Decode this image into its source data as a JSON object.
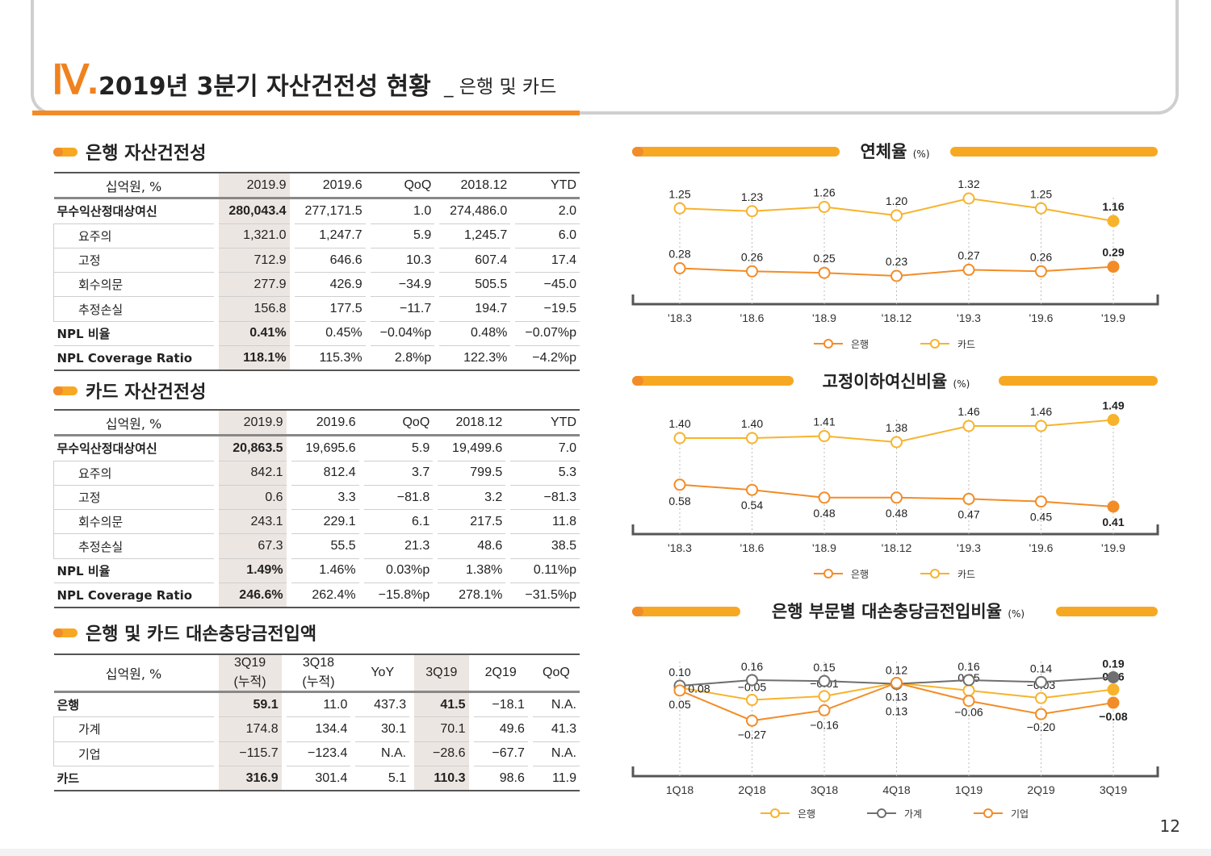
{
  "header": {
    "roman": "Ⅳ.",
    "title": "2019년 3분기 자산건전성 현황",
    "subtitle": "_ 은행 및 카드"
  },
  "colors": {
    "orange": "#f28c28",
    "yellow": "#f7b32b",
    "gray": "#6f6f6f",
    "highlight": "#ece6e2"
  },
  "bank_table": {
    "title": "은행 자산건전성",
    "columns": [
      "십억원, %",
      "2019.9",
      "2019.6",
      "QoQ",
      "2018.12",
      "YTD"
    ],
    "rows": [
      {
        "label": "무수익산정대상여신",
        "values": [
          "280,043.4",
          "277,171.5",
          "1.0",
          "274,486.0",
          "2.0"
        ]
      },
      {
        "label": "요주의",
        "values": [
          "1,321.0",
          "1,247.7",
          "5.9",
          "1,245.7",
          "6.0"
        ]
      },
      {
        "label": "고정",
        "values": [
          "712.9",
          "646.6",
          "10.3",
          "607.4",
          "17.4"
        ]
      },
      {
        "label": "회수의문",
        "values": [
          "277.9",
          "426.9",
          "-34.9",
          "505.5",
          "-45.0"
        ]
      },
      {
        "label": "추정손실",
        "values": [
          "156.8",
          "177.5",
          "-11.7",
          "194.7",
          "-19.5"
        ]
      },
      {
        "label": "NPL 비율",
        "values": [
          "0.41%",
          "0.45%",
          "-0.04%p",
          "0.48%",
          "-0.07%p"
        ]
      },
      {
        "label": "NPL Coverage Ratio",
        "values": [
          "118.1%",
          "115.3%",
          "2.8%p",
          "122.3%",
          "-4.2%p"
        ]
      }
    ]
  },
  "card_table": {
    "title": "카드 자산건전성",
    "columns": [
      "십억원, %",
      "2019.9",
      "2019.6",
      "QoQ",
      "2018.12",
      "YTD"
    ],
    "rows": [
      {
        "label": "무수익산정대상여신",
        "values": [
          "20,863.5",
          "19,695.6",
          "5.9",
          "19,499.6",
          "7.0"
        ]
      },
      {
        "label": "요주의",
        "values": [
          "842.1",
          "812.4",
          "3.7",
          "799.5",
          "5.3"
        ]
      },
      {
        "label": "고정",
        "values": [
          "0.6",
          "3.3",
          "-81.8",
          "3.2",
          "-81.3"
        ]
      },
      {
        "label": "회수의문",
        "values": [
          "243.1",
          "229.1",
          "6.1",
          "217.5",
          "11.8"
        ]
      },
      {
        "label": "추정손실",
        "values": [
          "67.3",
          "55.5",
          "21.3",
          "48.6",
          "38.5"
        ]
      },
      {
        "label": "NPL 비율",
        "values": [
          "1.49%",
          "1.46%",
          "0.03%p",
          "1.38%",
          "0.11%p"
        ]
      },
      {
        "label": "NPL Coverage Ratio",
        "values": [
          "246.6%",
          "262.4%",
          "-15.8%p",
          "278.1%",
          "-31.5%p"
        ]
      }
    ]
  },
  "provision_table": {
    "title": "은행 및 카드 대손충당금전입액",
    "columns": [
      "십억원, %",
      "3Q19\n(누적)",
      "3Q18\n(누적)",
      "YoY",
      "3Q19",
      "2Q19",
      "QoQ"
    ],
    "rows": [
      {
        "label": "은행",
        "values": [
          "59.1",
          "11.0",
          "437.3",
          "41.5",
          "-18.1",
          "N.A."
        ]
      },
      {
        "label": "가계",
        "values": [
          "174.8",
          "134.4",
          "30.1",
          "70.1",
          "49.6",
          "41.3"
        ]
      },
      {
        "label": "기업",
        "values": [
          "-115.7",
          "-123.4",
          "N.A.",
          "-28.6",
          "-67.7",
          "N.A."
        ]
      },
      {
        "label": "카드",
        "values": [
          "316.9",
          "301.4",
          "5.1",
          "110.3",
          "98.6",
          "11.9"
        ]
      }
    ]
  },
  "chart_data": [
    {
      "type": "line",
      "title": "연체율",
      "unit": "(%)",
      "categories": [
        "'18.3",
        "'18.6",
        "'18.9",
        "'18.12",
        "'19.3",
        "'19.6",
        "'19.9"
      ],
      "series": [
        {
          "name": "은행",
          "values": [
            0.28,
            0.26,
            0.25,
            0.23,
            0.27,
            0.26,
            0.29
          ],
          "color": "#f28c28"
        },
        {
          "name": "카드",
          "values": [
            1.25,
            1.23,
            1.26,
            1.2,
            1.32,
            1.25,
            1.16
          ],
          "color": "#f7b32b"
        }
      ]
    },
    {
      "type": "line",
      "title": "고정이하여신비율",
      "unit": "(%)",
      "categories": [
        "'18.3",
        "'18.6",
        "'18.9",
        "'18.12",
        "'19.3",
        "'19.6",
        "'19.9"
      ],
      "series": [
        {
          "name": "은행",
          "values": [
            0.58,
            0.54,
            0.48,
            0.48,
            0.47,
            0.45,
            0.41
          ],
          "color": "#f28c28"
        },
        {
          "name": "카드",
          "values": [
            1.4,
            1.4,
            1.41,
            1.38,
            1.46,
            1.46,
            1.49
          ],
          "color": "#f7b32b"
        }
      ]
    },
    {
      "type": "line",
      "title": "은행 부문별 대손충당금전입비율",
      "unit": "(%)",
      "categories": [
        "1Q18",
        "2Q18",
        "3Q18",
        "4Q18",
        "1Q19",
        "2Q19",
        "3Q19"
      ],
      "series": [
        {
          "name": "은행",
          "values": [
            0.08,
            -0.05,
            -0.01,
            0.13,
            0.05,
            -0.03,
            0.06
          ],
          "color": "#f7b32b"
        },
        {
          "name": "가계",
          "values": [
            0.1,
            0.16,
            0.15,
            0.12,
            0.16,
            0.14,
            0.19
          ],
          "color": "#6f6f6f"
        },
        {
          "name": "기업",
          "values": [
            0.05,
            -0.27,
            -0.16,
            0.13,
            -0.06,
            -0.2,
            -0.08
          ],
          "color": "#f28c28"
        }
      ]
    }
  ],
  "page_number": "12"
}
